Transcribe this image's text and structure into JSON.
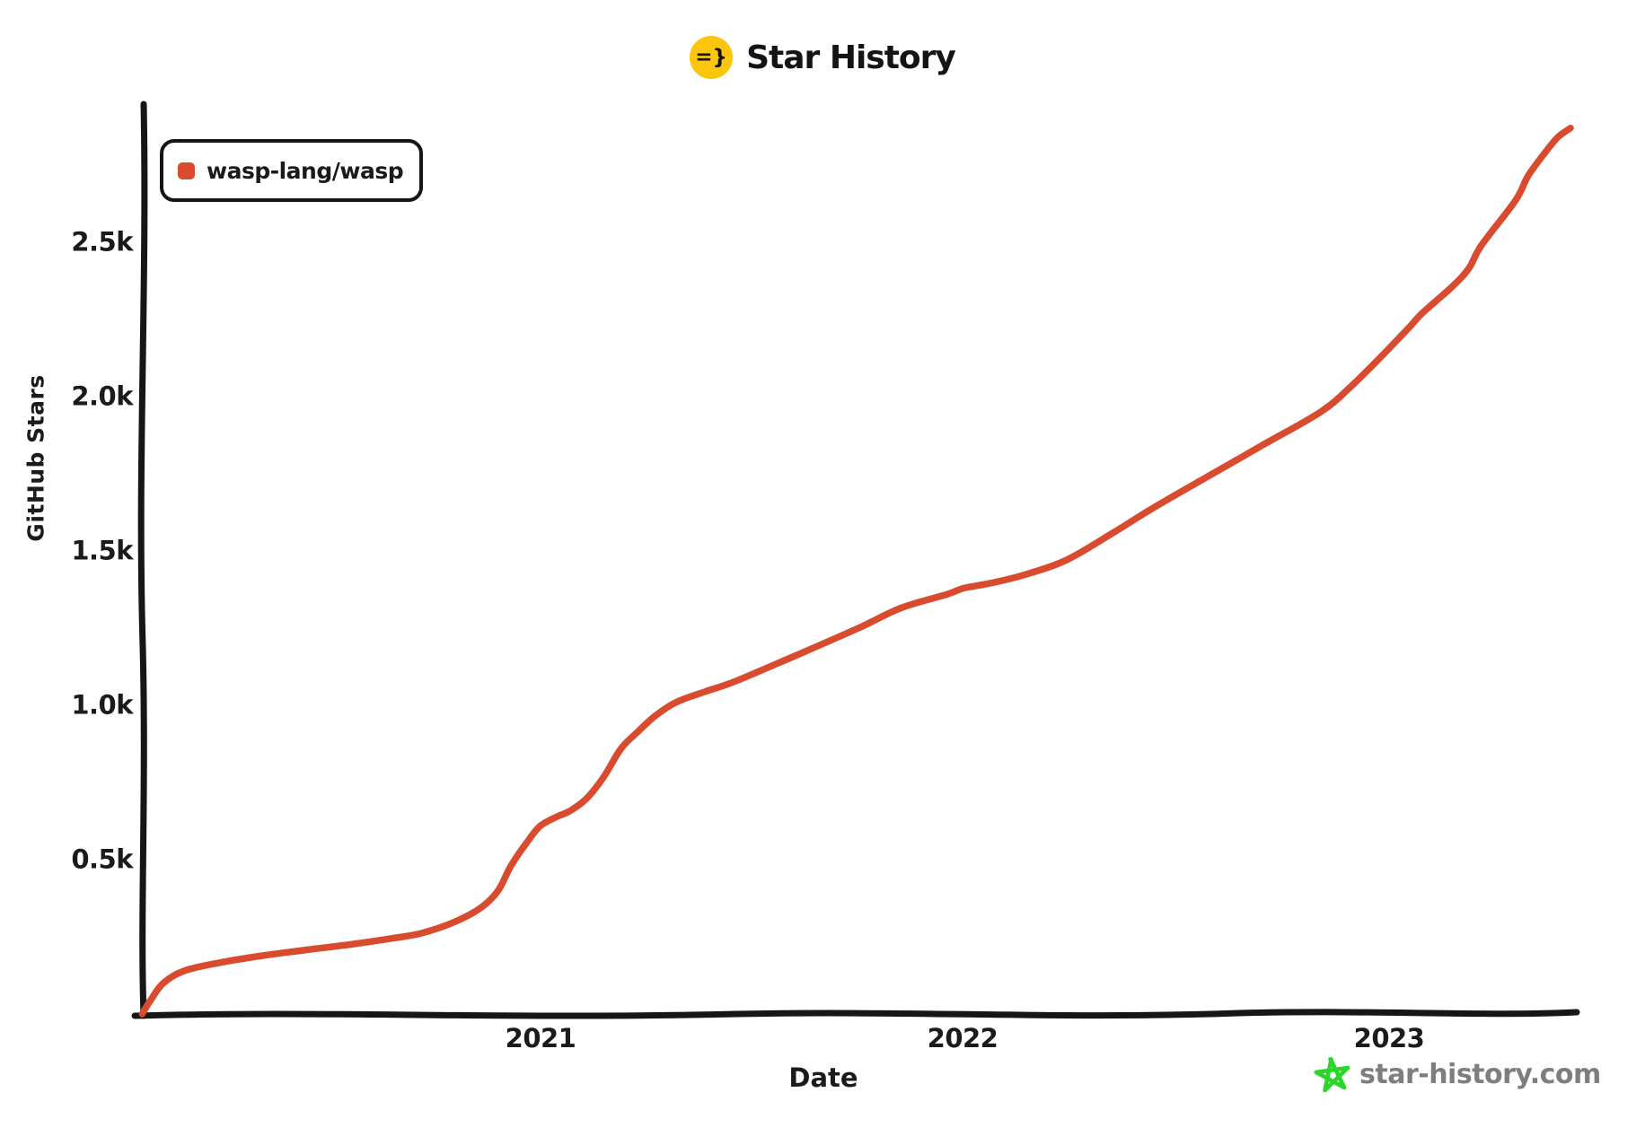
{
  "header": {
    "logo_text": "=}",
    "title": "Star History"
  },
  "watermark": {
    "site": "star-history.com"
  },
  "colors": {
    "logo_bg": "#fbc50b",
    "axis": "#161616",
    "text": "#1b1b1b",
    "line_red": "#d94b2e",
    "watermark_green": "#2bd62b",
    "watermark_gray": "#7e7e7e"
  },
  "chart_data": {
    "type": "line",
    "title": "Star History",
    "xlabel": "Date",
    "ylabel": "GitHub Stars",
    "x_ticks": [
      "2021",
      "2022",
      "2023"
    ],
    "y_ticks": [
      "0.5k",
      "1.0k",
      "1.5k",
      "2.0k",
      "2.5k"
    ],
    "y_tick_values": [
      500,
      1000,
      1500,
      2000,
      2500
    ],
    "x_range_decimal_years": [
      2020.05,
      2023.45
    ],
    "y_range": [
      0,
      2950
    ],
    "grid": false,
    "legend_position": "top-left",
    "series": [
      {
        "name": "wasp-lang/wasp",
        "color": "#d94b2e",
        "points_format": "[decimal_year, github_stars]",
        "points": [
          [
            2020.06,
            0
          ],
          [
            2020.08,
            45
          ],
          [
            2020.11,
            100
          ],
          [
            2020.16,
            140
          ],
          [
            2020.25,
            168
          ],
          [
            2020.35,
            190
          ],
          [
            2020.45,
            208
          ],
          [
            2020.55,
            225
          ],
          [
            2020.65,
            245
          ],
          [
            2020.72,
            262
          ],
          [
            2020.8,
            300
          ],
          [
            2020.86,
            345
          ],
          [
            2020.9,
            400
          ],
          [
            2020.93,
            480
          ],
          [
            2020.97,
            560
          ],
          [
            2021.0,
            610
          ],
          [
            2021.04,
            640
          ],
          [
            2021.07,
            658
          ],
          [
            2021.11,
            700
          ],
          [
            2021.15,
            770
          ],
          [
            2021.19,
            860
          ],
          [
            2021.23,
            915
          ],
          [
            2021.27,
            965
          ],
          [
            2021.32,
            1010
          ],
          [
            2021.39,
            1045
          ],
          [
            2021.46,
            1078
          ],
          [
            2021.6,
            1160
          ],
          [
            2021.75,
            1250
          ],
          [
            2021.85,
            1315
          ],
          [
            2021.96,
            1360
          ],
          [
            2022.0,
            1380
          ],
          [
            2022.06,
            1395
          ],
          [
            2022.14,
            1422
          ],
          [
            2022.24,
            1470
          ],
          [
            2022.35,
            1558
          ],
          [
            2022.44,
            1635
          ],
          [
            2022.56,
            1730
          ],
          [
            2022.7,
            1840
          ],
          [
            2022.84,
            1950
          ],
          [
            2022.91,
            2030
          ],
          [
            2022.98,
            2125
          ],
          [
            2023.05,
            2225
          ],
          [
            2023.08,
            2270
          ],
          [
            2023.15,
            2355
          ],
          [
            2023.19,
            2415
          ],
          [
            2023.22,
            2490
          ],
          [
            2023.3,
            2635
          ],
          [
            2023.33,
            2715
          ],
          [
            2023.37,
            2790
          ],
          [
            2023.4,
            2840
          ],
          [
            2023.43,
            2870
          ]
        ]
      }
    ]
  }
}
